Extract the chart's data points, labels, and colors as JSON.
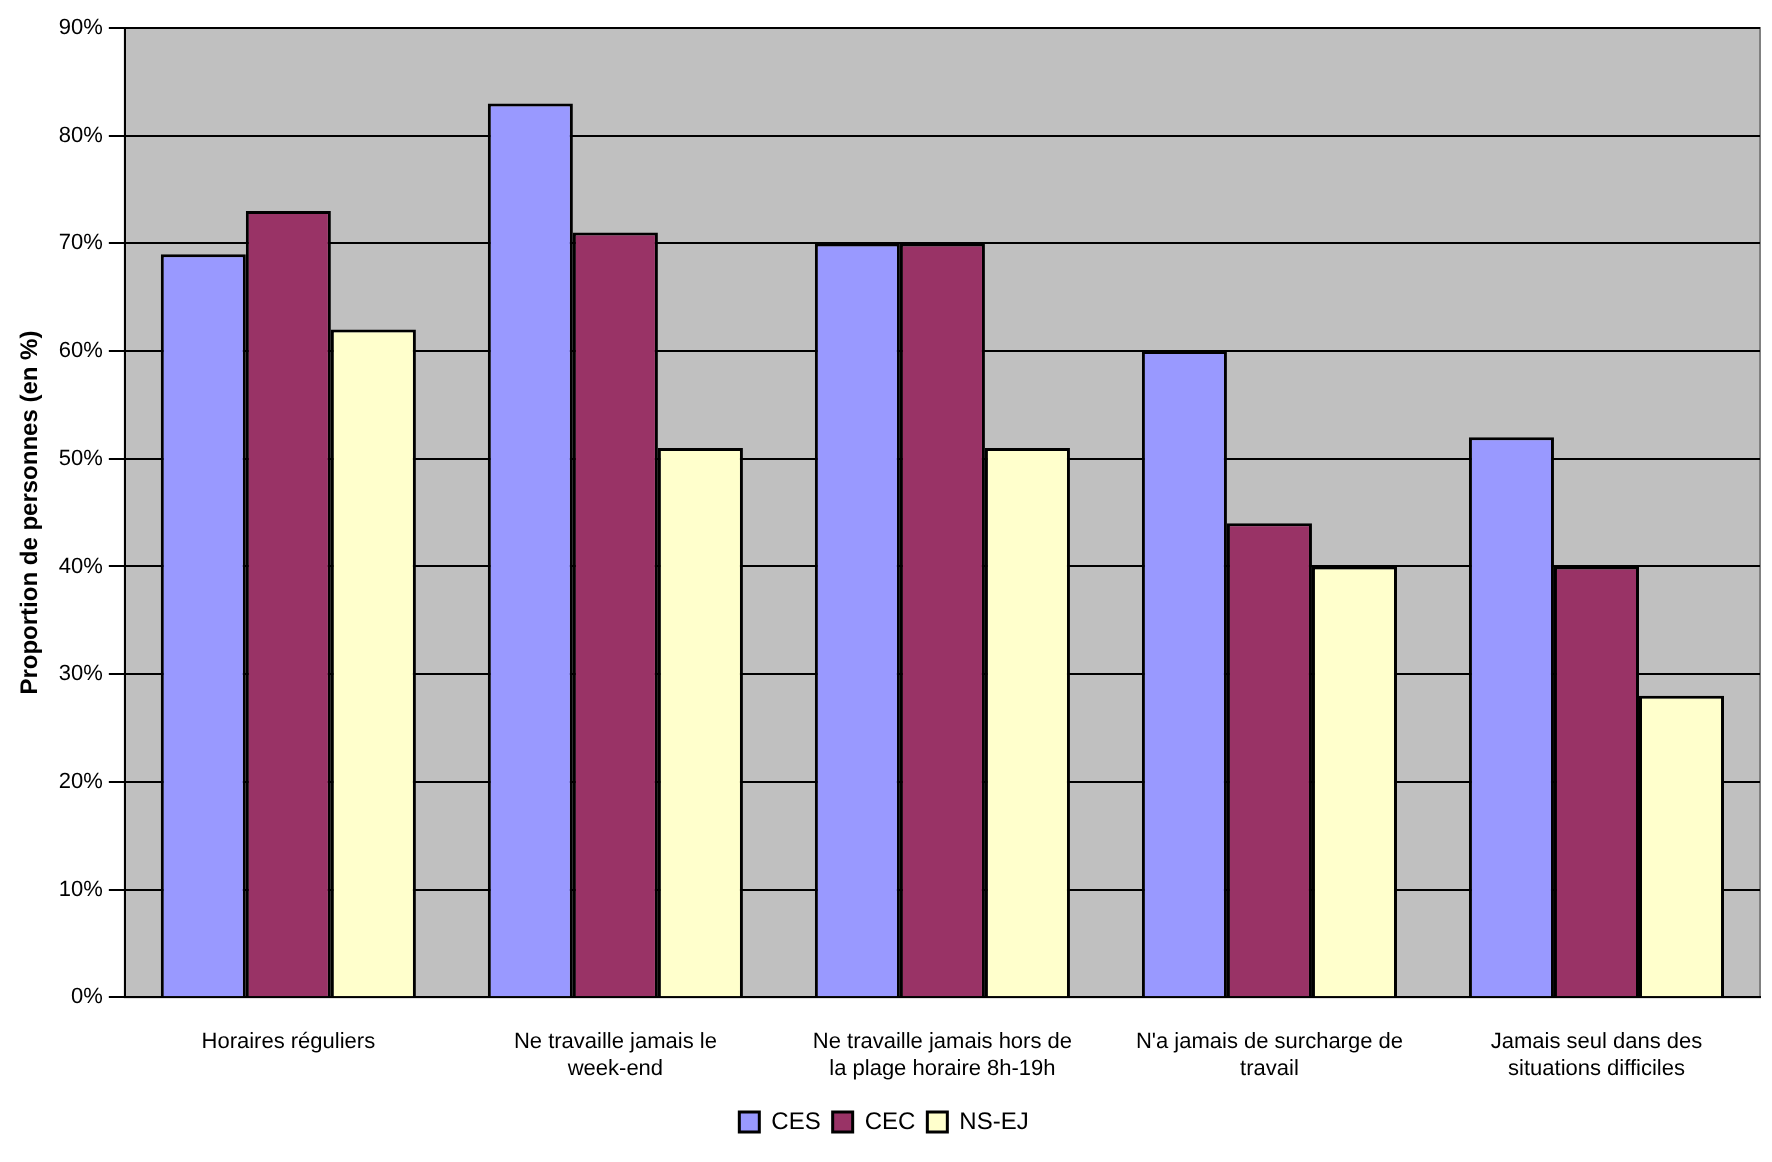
{
  "chart_data": {
    "type": "bar",
    "ylabel": "Proportion de personnes (en %)",
    "categories": [
      "Horaires réguliers",
      "Ne travaille jamais le week-end",
      "Ne travaille jamais hors de la plage horaire 8h-19h",
      "N'a jamais de surcharge de travail",
      "Jamais seul dans des situations difficiles"
    ],
    "series": [
      {
        "name": "CES",
        "color": "#9999ff",
        "values": [
          69,
          83,
          70,
          60,
          52
        ]
      },
      {
        "name": "CEC",
        "color": "#993366",
        "values": [
          73,
          71,
          70,
          44,
          40
        ]
      },
      {
        "name": "NS-EJ",
        "color": "#ffffcc",
        "values": [
          62,
          51,
          51,
          40,
          28
        ]
      }
    ],
    "ylim": [
      0,
      90
    ],
    "yticks": [
      {
        "value": 0,
        "label": "0%"
      },
      {
        "value": 10,
        "label": "10%"
      },
      {
        "value": 20,
        "label": "20%"
      },
      {
        "value": 30,
        "label": "30%"
      },
      {
        "value": 40,
        "label": "40%"
      },
      {
        "value": 50,
        "label": "50%"
      },
      {
        "value": 60,
        "label": "60%"
      },
      {
        "value": 70,
        "label": "70%"
      },
      {
        "value": 80,
        "label": "80%"
      },
      {
        "value": 90,
        "label": "90%"
      }
    ],
    "grid": "y",
    "legend": "bottom"
  }
}
